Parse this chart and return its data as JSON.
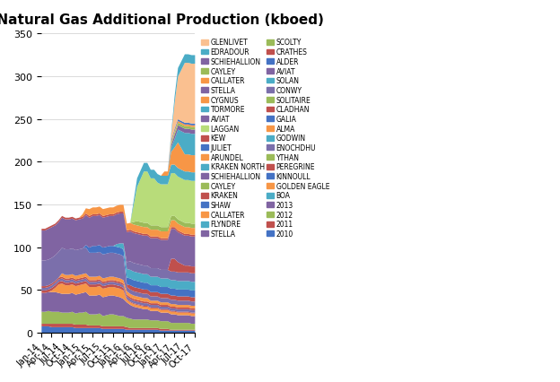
{
  "title": "Recent UK Natural Gas Additional Production (kboed)",
  "ylim": [
    0,
    350
  ],
  "yticks": [
    0,
    50,
    100,
    150,
    200,
    250,
    300,
    350
  ],
  "x_labels": [
    "Jan-14",
    "Apr-14",
    "Jul-14",
    "Oct-14",
    "Jan-15",
    "Apr-15",
    "Jul-15",
    "Oct-15",
    "Jan-16",
    "Apr-16",
    "Jul-16",
    "Oct-16",
    "Jan-17",
    "Apr-17",
    "Jul-17",
    "Oct-17"
  ],
  "legend_left": [
    {
      "name": "GLENLIVET",
      "color": "#FAC090"
    },
    {
      "name": "SCHIEHALLION",
      "color": "#8064A2"
    },
    {
      "name": "CALLATER",
      "color": "#C0504D"
    },
    {
      "name": "CYGNUS",
      "color": "#F79646"
    },
    {
      "name": "AVIAT",
      "color": "#8064A2"
    },
    {
      "name": "KEW",
      "color": "#C0504D"
    },
    {
      "name": "ARUNDEL",
      "color": "#F79646"
    },
    {
      "name": "SCHIEHALLION",
      "color": "#8064A2"
    },
    {
      "name": "KRAKEN",
      "color": "#C0504D"
    },
    {
      "name": "CALLATER",
      "color": "#F79646"
    },
    {
      "name": "STELLA",
      "color": "#8064A2"
    },
    {
      "name": "CRATHES",
      "color": "#C0504D"
    },
    {
      "name": "AVIAT",
      "color": "#F79646"
    },
    {
      "name": "CONWY",
      "color": "#8064A2"
    },
    {
      "name": "CLADHAN",
      "color": "#C0504D"
    },
    {
      "name": "ALMA",
      "color": "#F79646"
    },
    {
      "name": "ENOCHDHU",
      "color": "#8064A2"
    },
    {
      "name": "PEREGRINE",
      "color": "#C0504D"
    },
    {
      "name": "GOLDEN EAGLE",
      "color": "#F79646"
    },
    {
      "name": "2013",
      "color": "#8064A2"
    },
    {
      "name": "2011",
      "color": "#C0504D"
    }
  ],
  "legend_right": [
    {
      "name": "EDRADOUR",
      "color": "#4BACC6"
    },
    {
      "name": "CAYLEY",
      "color": "#9BBB59"
    },
    {
      "name": "STELLA",
      "color": "#4472C4"
    },
    {
      "name": "TORMORE",
      "color": "#4BACC6"
    },
    {
      "name": "LAGGAN",
      "color": "#9BBB59"
    },
    {
      "name": "JULIET",
      "color": "#4472C4"
    },
    {
      "name": "KRAKEN NORTH",
      "color": "#4BACC6"
    },
    {
      "name": "CAYLEY",
      "color": "#9BBB59"
    },
    {
      "name": "SHAW",
      "color": "#4472C4"
    },
    {
      "name": "FLYNDRE",
      "color": "#4BACC6"
    },
    {
      "name": "SCOLTY",
      "color": "#9BBB59"
    },
    {
      "name": "ALDER",
      "color": "#4472C4"
    },
    {
      "name": "SOLAN",
      "color": "#4BACC6"
    },
    {
      "name": "SOLITAIRE",
      "color": "#9BBB59"
    },
    {
      "name": "GALIA",
      "color": "#4472C4"
    },
    {
      "name": "GODWIN",
      "color": "#4BACC6"
    },
    {
      "name": "YTHAN",
      "color": "#9BBB59"
    },
    {
      "name": "KINNOULL",
      "color": "#4472C4"
    },
    {
      "name": "BOA",
      "color": "#4BACC6"
    },
    {
      "name": "2012",
      "color": "#9BBB59"
    },
    {
      "name": "2010",
      "color": "#4472C4"
    }
  ]
}
